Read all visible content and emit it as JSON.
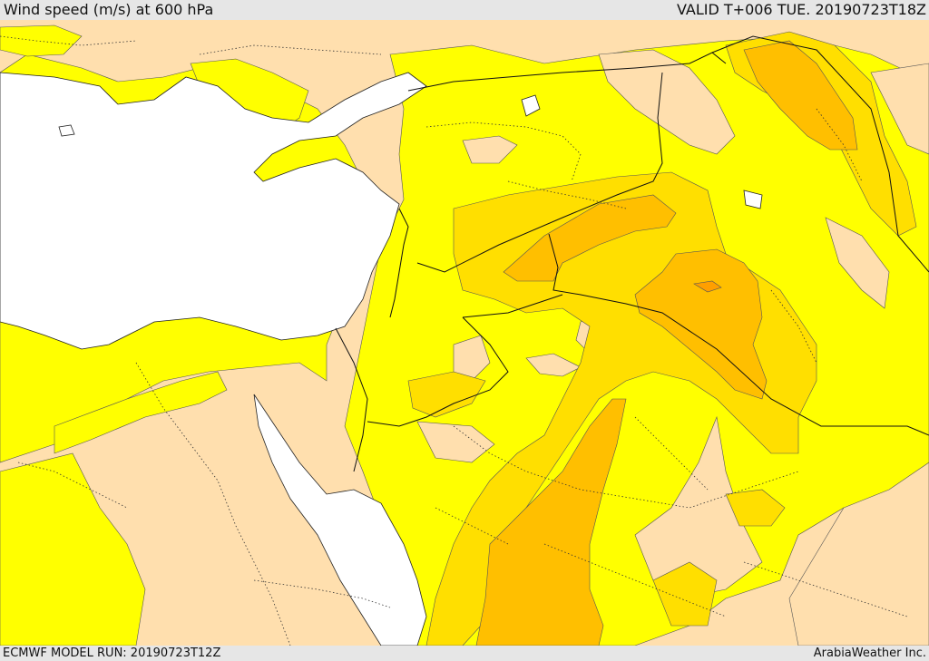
{
  "header": {
    "title": "Wind speed (m/s) at 600 hPa",
    "valid": "VALID T+006 TUE. 20190723T18Z"
  },
  "footer": {
    "model_run": "ECMWF MODEL RUN: 20190723T12Z",
    "credit": "ArabiaWeather Inc."
  },
  "colors": {
    "sea": "#ffffff",
    "band_0_5": "#ffdfae",
    "band_5_10": "#ffff00",
    "band_10_15": "#ffdf00",
    "band_15_20": "#ffbf00",
    "band_20_25": "#ff9f00"
  },
  "map": {
    "variable": "wind speed",
    "units": "m/s",
    "level": "600 hPa",
    "region": "Eastern Mediterranean / Middle East"
  }
}
